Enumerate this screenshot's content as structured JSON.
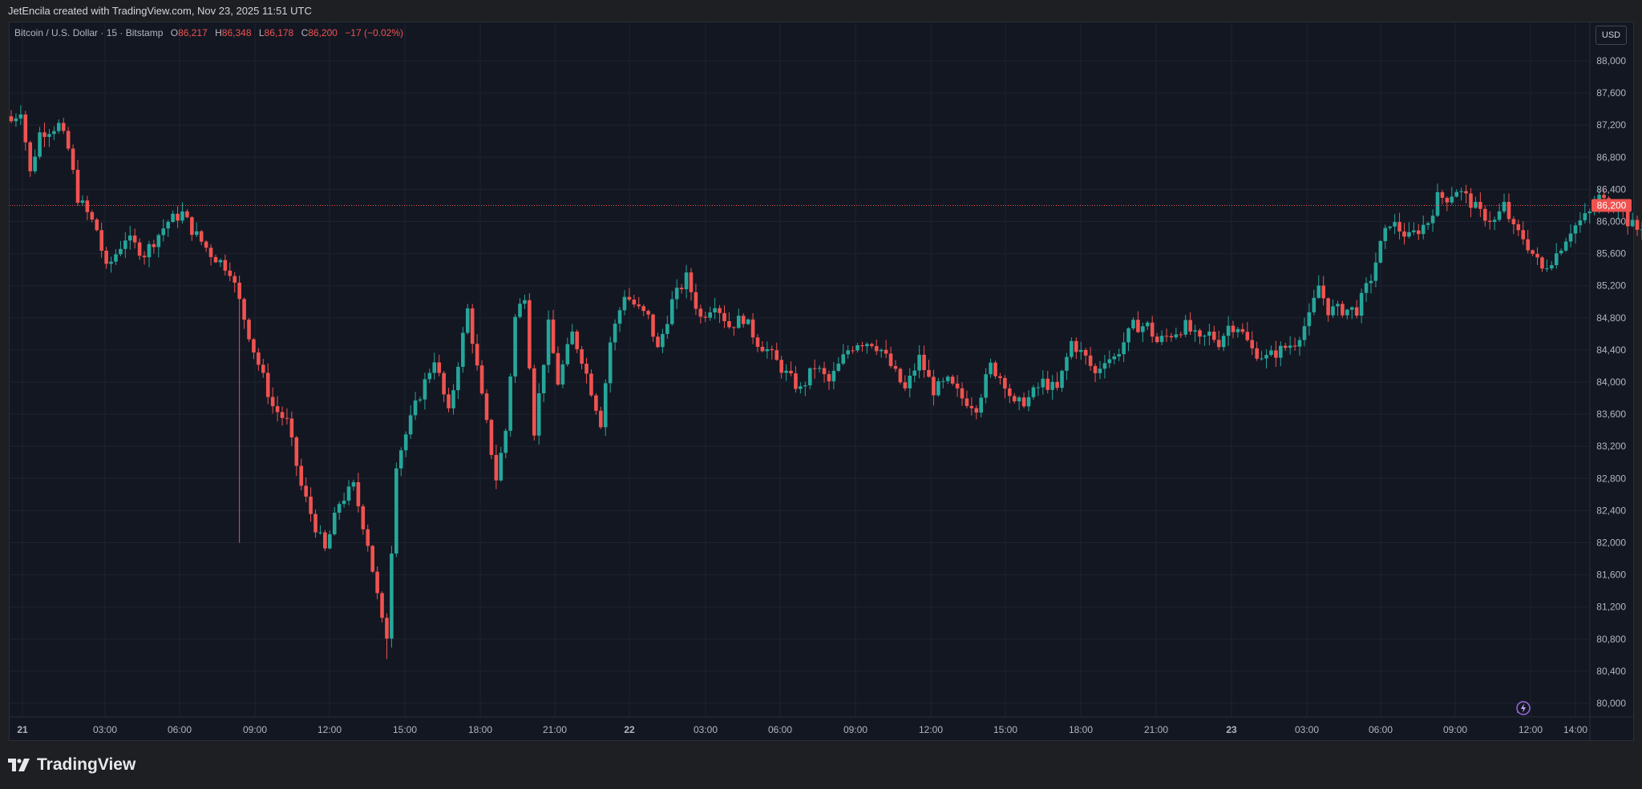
{
  "header": {
    "attribution": "JetEncila created with TradingView.com, Nov 23, 2025 11:51 UTC"
  },
  "legend": {
    "symbol": "Bitcoin / U.S. Dollar · 15 · Bitstamp",
    "open_label": "O",
    "open_value": "86,217",
    "high_label": "H",
    "high_value": "86,348",
    "low_label": "L",
    "low_value": "86,178",
    "close_label": "C",
    "close_value": "86,200",
    "change": "−17 (−0.02%)"
  },
  "currency_button": "USD",
  "brand": {
    "name": "TradingView"
  },
  "colors": {
    "up": "#26a69a",
    "down": "#ef5350",
    "background": "#131722",
    "grid": "#1f2330",
    "axis_text": "#b2b5be",
    "price_line": "#ef5350"
  },
  "icons": {
    "brand_logo": "tradingview-logo-icon",
    "assistant": "lightning-icon"
  },
  "chart_data": {
    "type": "candlestick",
    "interval": "15",
    "ylim": [
      79800,
      88600
    ],
    "y_ticks": [
      80000,
      80400,
      80800,
      81200,
      81600,
      82000,
      82400,
      82800,
      83200,
      83600,
      84000,
      84400,
      84800,
      85200,
      85600,
      86000,
      86400,
      86800,
      87200,
      87600,
      88000
    ],
    "y_tick_labels": [
      "80,000",
      "80,400",
      "80,800",
      "81,200",
      "81,600",
      "82,000",
      "82,400",
      "82,800",
      "83,200",
      "83,600",
      "84,000",
      "84,400",
      "84,800",
      "85,200",
      "85,600",
      "86,000",
      "86,400",
      "86,800",
      "87,200",
      "87,600",
      "88,000"
    ],
    "x_ticks": [
      "21",
      "03:00",
      "06:00",
      "09:00",
      "12:00",
      "15:00",
      "18:00",
      "21:00",
      "22",
      "03:00",
      "06:00",
      "09:00",
      "12:00",
      "15:00",
      "18:00",
      "21:00",
      "23",
      "03:00",
      "06:00",
      "09:00",
      "12:00",
      "14:00"
    ],
    "last_price": 86200,
    "last_price_label": "86,200",
    "keypoints": [
      [
        0,
        87250
      ],
      [
        2,
        87400
      ],
      [
        4,
        86600
      ],
      [
        6,
        87100
      ],
      [
        10,
        87200
      ],
      [
        12,
        86900
      ],
      [
        14,
        86300
      ],
      [
        18,
        85900
      ],
      [
        20,
        85400
      ],
      [
        24,
        85800
      ],
      [
        28,
        85600
      ],
      [
        33,
        86000
      ],
      [
        36,
        86100
      ],
      [
        38,
        85900
      ],
      [
        42,
        85600
      ],
      [
        46,
        85400
      ],
      [
        48,
        85000
      ],
      [
        51,
        84400
      ],
      [
        55,
        83700
      ],
      [
        58,
        83500
      ],
      [
        61,
        82700
      ],
      [
        64,
        82200
      ],
      [
        66,
        81900
      ],
      [
        69,
        82500
      ],
      [
        72,
        82700
      ],
      [
        75,
        82000
      ],
      [
        78,
        81000
      ],
      [
        79,
        80850
      ],
      [
        81,
        83000
      ],
      [
        85,
        83700
      ],
      [
        89,
        84300
      ],
      [
        92,
        83600
      ],
      [
        96,
        84900
      ],
      [
        99,
        83800
      ],
      [
        102,
        82800
      ],
      [
        104,
        83400
      ],
      [
        106,
        84800
      ],
      [
        108,
        85100
      ],
      [
        110,
        83400
      ],
      [
        113,
        84700
      ],
      [
        115,
        84000
      ],
      [
        118,
        84600
      ],
      [
        120,
        84300
      ],
      [
        124,
        83500
      ],
      [
        126,
        84500
      ],
      [
        129,
        85100
      ],
      [
        132,
        84900
      ],
      [
        134,
        84800
      ],
      [
        136,
        84400
      ],
      [
        139,
        85000
      ],
      [
        142,
        85300
      ],
      [
        145,
        84800
      ],
      [
        148,
        85000
      ],
      [
        151,
        84700
      ],
      [
        154,
        84800
      ],
      [
        157,
        84500
      ],
      [
        159,
        84400
      ],
      [
        163,
        84100
      ],
      [
        166,
        83900
      ],
      [
        169,
        84200
      ],
      [
        172,
        84000
      ],
      [
        176,
        84400
      ],
      [
        178,
        84500
      ],
      [
        181,
        84500
      ],
      [
        183,
        84400
      ],
      [
        186,
        84100
      ],
      [
        188,
        83900
      ],
      [
        191,
        84300
      ],
      [
        194,
        83900
      ],
      [
        197,
        84000
      ],
      [
        200,
        83800
      ],
      [
        203,
        83700
      ],
      [
        206,
        84200
      ],
      [
        209,
        84000
      ],
      [
        211,
        83700
      ],
      [
        214,
        83800
      ],
      [
        217,
        84000
      ],
      [
        220,
        83900
      ],
      [
        223,
        84500
      ],
      [
        226,
        84300
      ],
      [
        228,
        84100
      ],
      [
        230,
        84300
      ],
      [
        232,
        84300
      ],
      [
        234,
        84500
      ],
      [
        236,
        84700
      ],
      [
        239,
        84700
      ],
      [
        241,
        84500
      ],
      [
        244,
        84600
      ],
      [
        247,
        84700
      ],
      [
        250,
        84500
      ],
      [
        252,
        84600
      ],
      [
        254,
        84500
      ],
      [
        256,
        84700
      ],
      [
        258,
        84700
      ],
      [
        261,
        84400
      ],
      [
        264,
        84300
      ],
      [
        267,
        84400
      ],
      [
        270,
        84500
      ],
      [
        273,
        84800
      ],
      [
        275,
        85200
      ],
      [
        277,
        84900
      ],
      [
        280,
        84900
      ],
      [
        283,
        84900
      ],
      [
        286,
        85300
      ],
      [
        288,
        85700
      ],
      [
        290,
        86000
      ],
      [
        292,
        85900
      ],
      [
        294,
        85800
      ],
      [
        296,
        85900
      ],
      [
        298,
        86000
      ],
      [
        300,
        86300
      ],
      [
        302,
        86300
      ],
      [
        304,
        86400
      ],
      [
        306,
        86300
      ],
      [
        309,
        86100
      ],
      [
        312,
        86000
      ],
      [
        314,
        86200
      ],
      [
        316,
        85900
      ],
      [
        318,
        85800
      ],
      [
        320,
        85600
      ],
      [
        322,
        85400
      ],
      [
        325,
        85600
      ],
      [
        328,
        85900
      ],
      [
        330,
        86000
      ],
      [
        332,
        86100
      ],
      [
        334,
        86300
      ],
      [
        336,
        86200
      ],
      [
        338,
        86200
      ],
      [
        340,
        86000
      ],
      [
        342,
        85900
      ],
      [
        344,
        86000
      ],
      [
        346,
        86200
      ],
      [
        347,
        86200
      ]
    ]
  }
}
